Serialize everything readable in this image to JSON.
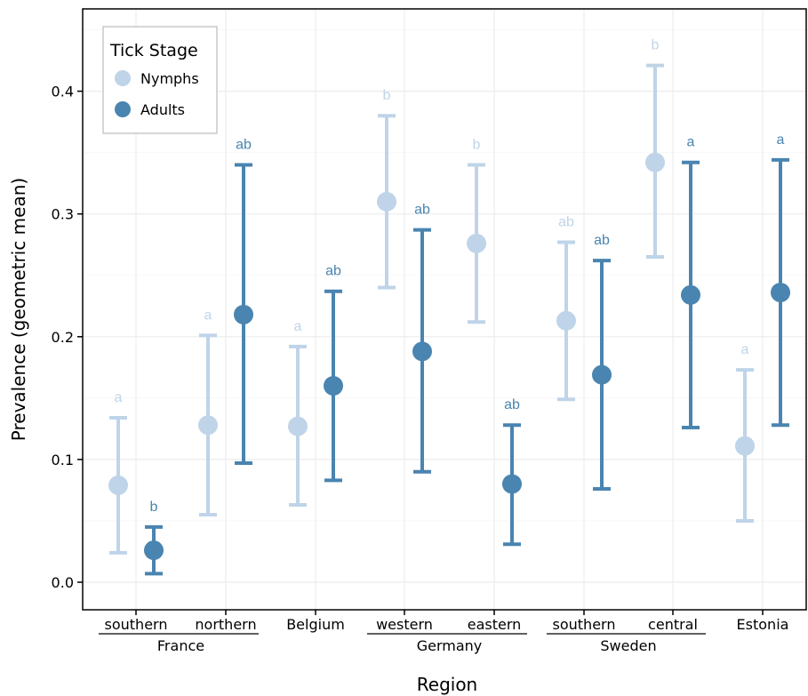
{
  "chart_data": {
    "type": "scatter",
    "subtype": "point-errorbar",
    "title": "",
    "xlabel": "Region",
    "ylabel": "Prevalence (geometric mean)",
    "ylim": [
      -0.022,
      0.467
    ],
    "yticks": [
      0.0,
      0.1,
      0.2,
      0.3,
      0.4
    ],
    "ytick_labels": [
      "0.0",
      "0.1",
      "0.2",
      "0.3",
      "0.4"
    ],
    "grid": true,
    "legend": {
      "title": "Tick Stage",
      "placement": "top-left",
      "entries": [
        "Nymphs",
        "Adults"
      ]
    },
    "categories": [
      "southern",
      "northern",
      "Belgium",
      "western",
      "eastern",
      "southern",
      "central",
      "Estonia"
    ],
    "groups": [
      {
        "label": "France",
        "from": 0,
        "to": 1
      },
      {
        "label": "Germany",
        "from": 3,
        "to": 4
      },
      {
        "label": "Sweden",
        "from": 5,
        "to": 6
      }
    ],
    "series": [
      {
        "name": "Nymphs",
        "color": "#bfd4e8",
        "values": [
          0.079,
          0.128,
          0.127,
          0.31,
          0.276,
          0.213,
          0.342,
          0.111
        ],
        "lower": [
          0.024,
          0.055,
          0.063,
          0.24,
          0.212,
          0.149,
          0.265,
          0.05
        ],
        "upper": [
          0.134,
          0.201,
          0.192,
          0.38,
          0.34,
          0.277,
          0.421,
          0.173
        ],
        "labels": [
          "a",
          "a",
          "a",
          "b",
          "b",
          "ab",
          "b",
          "a"
        ]
      },
      {
        "name": "Adults",
        "color": "#4a84b0",
        "values": [
          0.026,
          0.218,
          0.16,
          0.188,
          0.08,
          0.169,
          0.234,
          0.236
        ],
        "lower": [
          0.007,
          0.097,
          0.083,
          0.09,
          0.031,
          0.076,
          0.126,
          0.128
        ],
        "upper": [
          0.045,
          0.34,
          0.237,
          0.287,
          0.128,
          0.262,
          0.342,
          0.344
        ],
        "labels": [
          "b",
          "ab",
          "ab",
          "ab",
          "ab",
          "ab",
          "a",
          "a"
        ]
      }
    ]
  }
}
